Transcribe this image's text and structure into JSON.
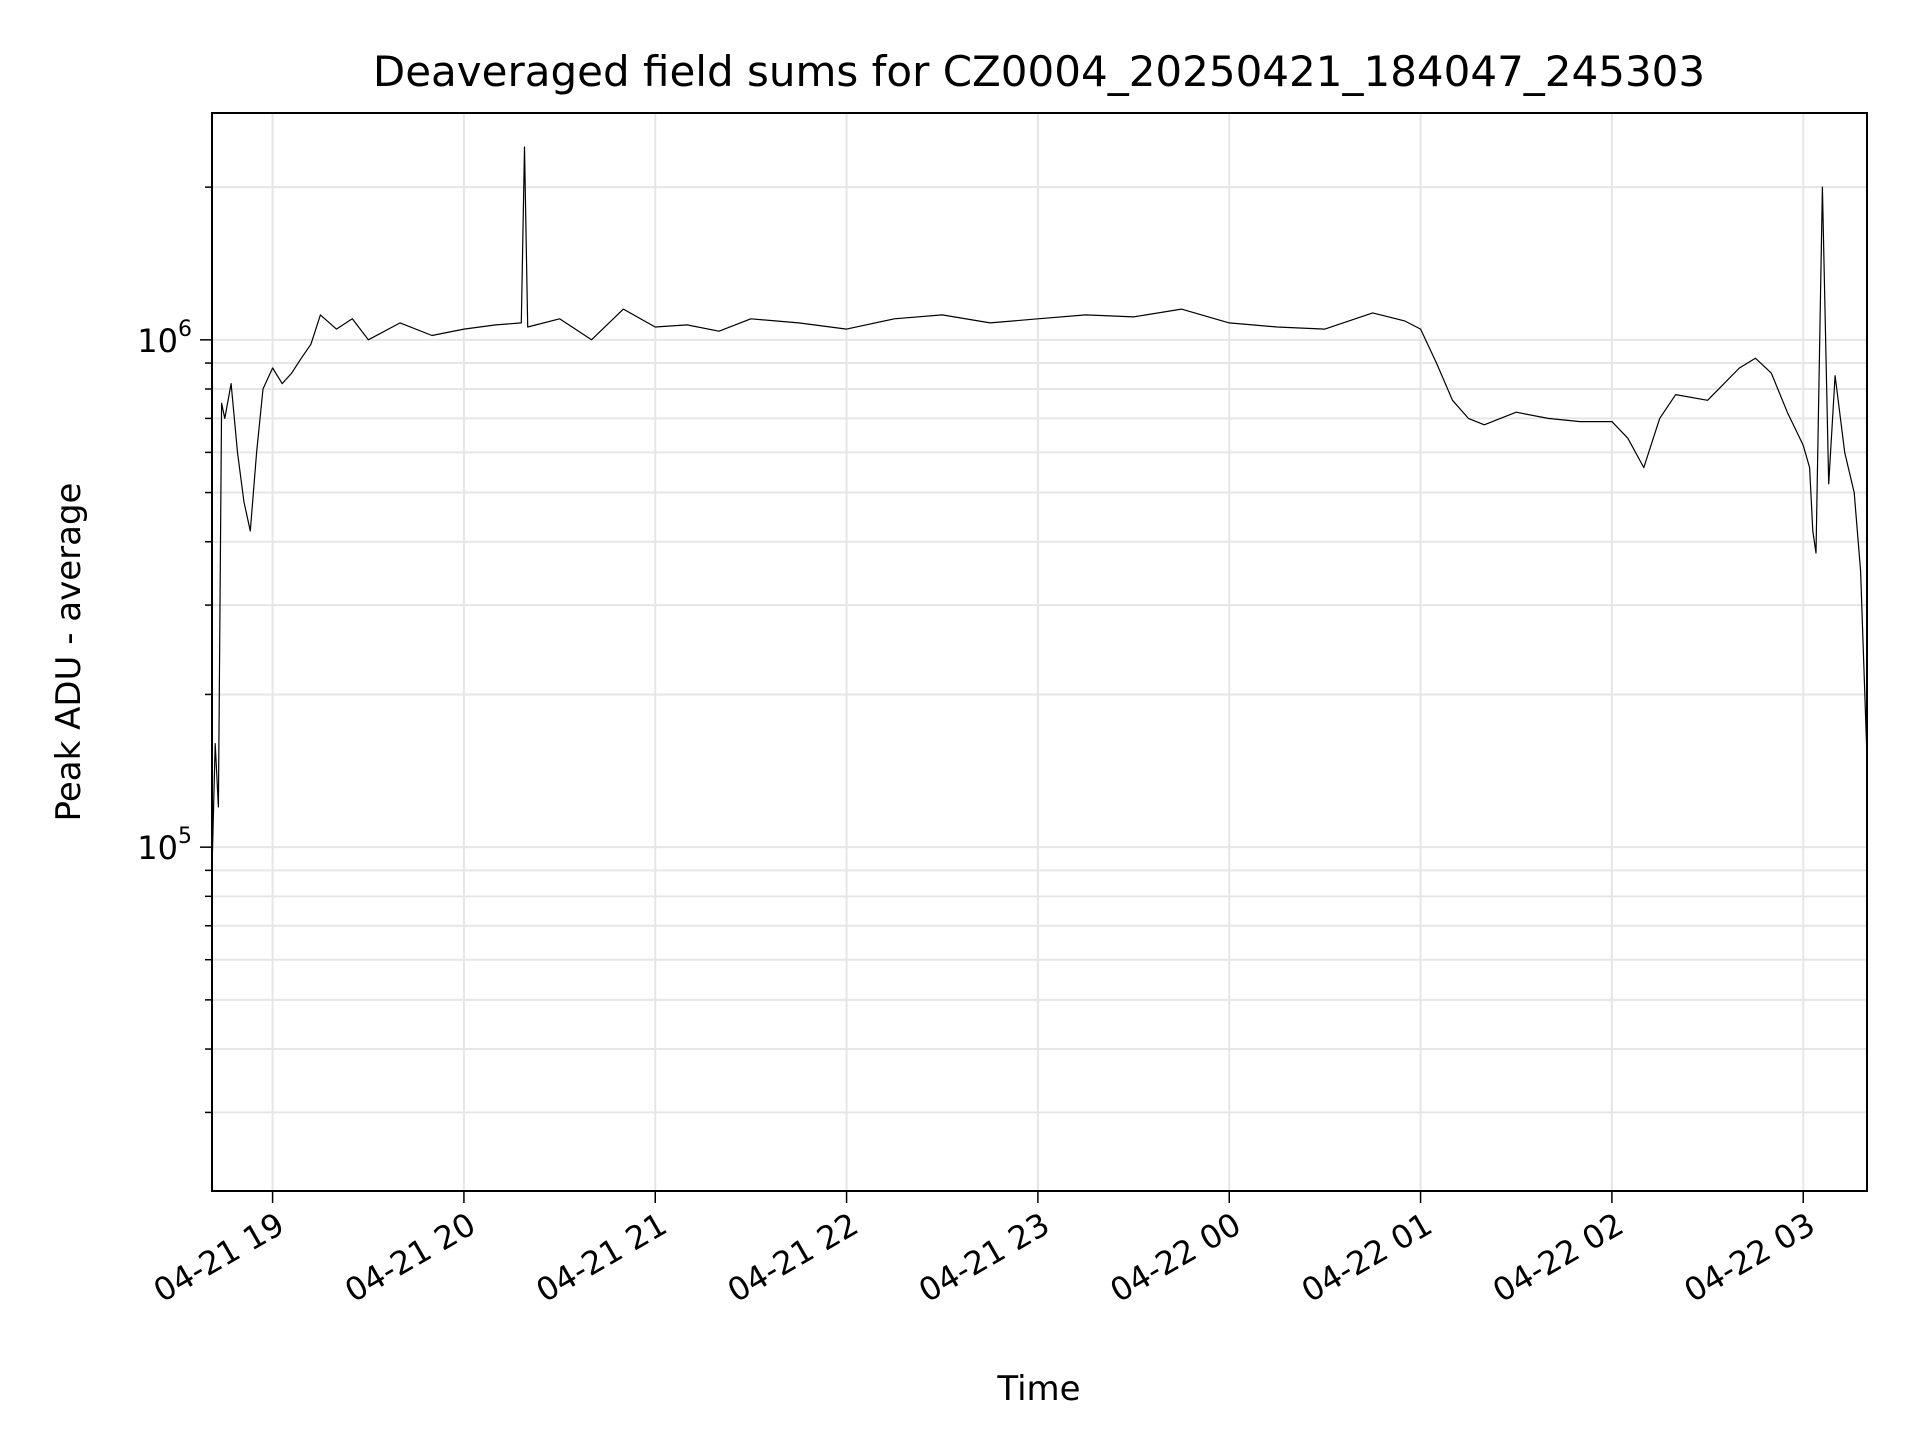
{
  "chart_data": {
    "type": "line",
    "title": "Deaveraged field sums for CZ0004_20250421_184047_245303",
    "xlabel": "Time",
    "ylabel": "Peak ADU - average",
    "yscale": "log",
    "ylim": [
      21000,
      2800000
    ],
    "xlim": [
      "2025-04-21 18:41",
      "2025-04-22 03:20"
    ],
    "grid": true,
    "line_color": "#000000",
    "x_ticks": [
      {
        "label": "04-21 19",
        "value": "2025-04-21 19:00"
      },
      {
        "label": "04-21 20",
        "value": "2025-04-21 20:00"
      },
      {
        "label": "04-21 21",
        "value": "2025-04-21 21:00"
      },
      {
        "label": "04-21 22",
        "value": "2025-04-21 22:00"
      },
      {
        "label": "04-21 23",
        "value": "2025-04-21 23:00"
      },
      {
        "label": "04-22 00",
        "value": "2025-04-22 00:00"
      },
      {
        "label": "04-22 01",
        "value": "2025-04-22 01:00"
      },
      {
        "label": "04-22 02",
        "value": "2025-04-22 02:00"
      },
      {
        "label": "04-22 03",
        "value": "2025-04-22 03:00"
      }
    ],
    "y_major_ticks": [
      {
        "base": "10",
        "exp": "5",
        "value": 100000
      },
      {
        "base": "10",
        "exp": "6",
        "value": 1000000
      }
    ],
    "x": [
      "2025-04-21 18:41",
      "2025-04-21 18:42",
      "2025-04-21 18:43",
      "2025-04-21 18:44",
      "2025-04-21 18:45",
      "2025-04-21 18:47",
      "2025-04-21 18:49",
      "2025-04-21 18:51",
      "2025-04-21 18:53",
      "2025-04-21 18:55",
      "2025-04-21 18:57",
      "2025-04-21 19:00",
      "2025-04-21 19:03",
      "2025-04-21 19:06",
      "2025-04-21 19:09",
      "2025-04-21 19:12",
      "2025-04-21 19:15",
      "2025-04-21 19:20",
      "2025-04-21 19:25",
      "2025-04-21 19:30",
      "2025-04-21 19:40",
      "2025-04-21 19:50",
      "2025-04-21 20:00",
      "2025-04-21 20:10",
      "2025-04-21 20:18",
      "2025-04-21 20:19",
      "2025-04-21 20:20",
      "2025-04-21 20:30",
      "2025-04-21 20:40",
      "2025-04-21 20:50",
      "2025-04-21 21:00",
      "2025-04-21 21:10",
      "2025-04-21 21:20",
      "2025-04-21 21:30",
      "2025-04-21 21:45",
      "2025-04-21 22:00",
      "2025-04-21 22:15",
      "2025-04-21 22:30",
      "2025-04-21 22:45",
      "2025-04-21 23:00",
      "2025-04-21 23:15",
      "2025-04-21 23:30",
      "2025-04-21 23:45",
      "2025-04-22 00:00",
      "2025-04-22 00:15",
      "2025-04-22 00:30",
      "2025-04-22 00:45",
      "2025-04-22 00:55",
      "2025-04-22 01:00",
      "2025-04-22 01:05",
      "2025-04-22 01:10",
      "2025-04-22 01:15",
      "2025-04-22 01:20",
      "2025-04-22 01:30",
      "2025-04-22 01:40",
      "2025-04-22 01:50",
      "2025-04-22 02:00",
      "2025-04-22 02:05",
      "2025-04-22 02:10",
      "2025-04-22 02:15",
      "2025-04-22 02:20",
      "2025-04-22 02:30",
      "2025-04-22 02:40",
      "2025-04-22 02:45",
      "2025-04-22 02:50",
      "2025-04-22 02:55",
      "2025-04-22 03:00",
      "2025-04-22 03:02",
      "2025-04-22 03:03",
      "2025-04-22 03:04",
      "2025-04-22 03:06",
      "2025-04-22 03:08",
      "2025-04-22 03:10",
      "2025-04-22 03:13",
      "2025-04-22 03:16",
      "2025-04-22 03:18",
      "2025-04-22 03:20"
    ],
    "values": [
      90000,
      160000,
      120000,
      750000,
      700000,
      820000,
      600000,
      480000,
      420000,
      600000,
      800000,
      880000,
      820000,
      860000,
      920000,
      980000,
      1120000,
      1050000,
      1100000,
      1000000,
      1080000,
      1020000,
      1050000,
      1070000,
      1080000,
      2400000,
      1060000,
      1100000,
      1000000,
      1150000,
      1060000,
      1070000,
      1040000,
      1100000,
      1080000,
      1050000,
      1100000,
      1120000,
      1080000,
      1100000,
      1120000,
      1110000,
      1150000,
      1080000,
      1060000,
      1050000,
      1130000,
      1090000,
      1050000,
      900000,
      760000,
      700000,
      680000,
      720000,
      700000,
      690000,
      690000,
      640000,
      560000,
      700000,
      780000,
      760000,
      880000,
      920000,
      860000,
      720000,
      620000,
      560000,
      420000,
      380000,
      2000000,
      520000,
      850000,
      600000,
      500000,
      350000,
      150000
    ]
  }
}
